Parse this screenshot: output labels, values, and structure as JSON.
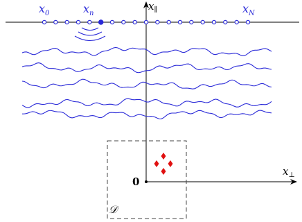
{
  "labels": {
    "x0": "x",
    "x0_sub": "0",
    "xn": "x",
    "xn_sub": "n",
    "xN": "x",
    "xN_sub": "N",
    "x_parallel": "x",
    "x_parallel_sub": "∥",
    "x_perp": "x",
    "x_perp_sub": "⊥",
    "origin": "0",
    "domain": "𝒟"
  },
  "colors": {
    "sensor": "#2a2ad8",
    "wave": "#2a2ad8",
    "scatterer": "#e01010",
    "axis": "#000000",
    "domain_box": "#444444"
  },
  "sensor_count": 19,
  "highlighted_sensor_index": 5,
  "random_layer_count": 5,
  "scatterer_count": 4
}
